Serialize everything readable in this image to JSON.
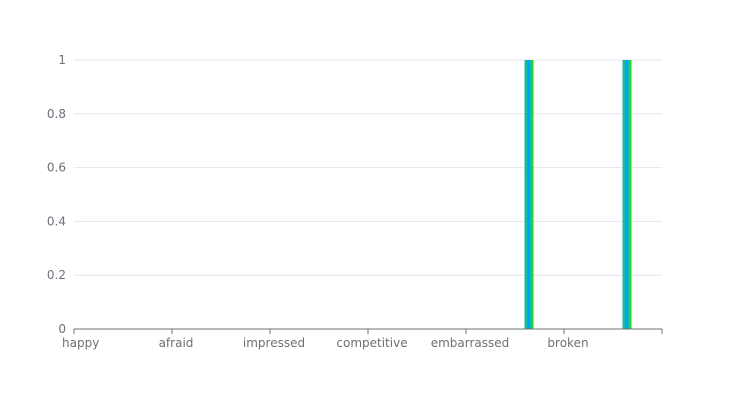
{
  "chart_data": {
    "type": "bar",
    "categories": [
      "happy",
      "afraid",
      "impressed",
      "competitive",
      "embarrassed",
      "broken"
    ],
    "series": [
      {
        "values": [
          0,
          0,
          0,
          0,
          1,
          1
        ],
        "color": "#19b9a0"
      },
      {
        "values": [
          0,
          0,
          0,
          0,
          1,
          1
        ],
        "color": "#00a2ff"
      },
      {
        "values": [
          0,
          0,
          0,
          0,
          1,
          1
        ],
        "color": "#22d630"
      }
    ],
    "ylim": [
      0,
      1
    ],
    "yticks": [
      "0",
      "0.2",
      "0.4",
      "0.6",
      "0.8",
      "1"
    ],
    "grid": true,
    "colors": {
      "axis": "#6e7079",
      "grid": "#e0e6f1",
      "text": "#6e7079"
    }
  }
}
